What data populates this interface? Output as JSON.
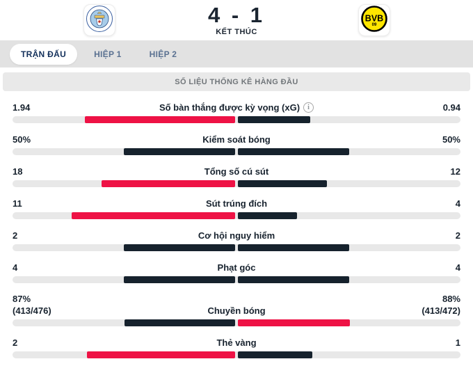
{
  "header": {
    "score": "4 - 1",
    "status": "KẾT THÚC",
    "home_badge_icon": "manchester-city-crest",
    "away_badge_icon": "borussia-dortmund-crest",
    "away_badge_text": "BVB",
    "away_badge_subtext": "09"
  },
  "tabs": [
    {
      "label": "TRẬN ĐẤU",
      "active": true
    },
    {
      "label": "HIỆP 1",
      "active": false
    },
    {
      "label": "HIỆP 2",
      "active": false
    }
  ],
  "section_title": "SỐ LIỆU THỐNG KÊ HÀNG ĐẦU",
  "colors": {
    "leader_bar": "#ee1245",
    "neutral_bar": "#16222d",
    "bar_track": "#e8e8e8",
    "text_dark": "#17222e",
    "tab_active_text": "#13305b",
    "tab_inactive_text": "#5a7191",
    "section_text": "#71767a",
    "bvb_yellow": "#ffe600",
    "mc_sky_blue": "#a7cce9"
  },
  "stats": [
    {
      "label": "Số bàn thắng được kỳ vọng (xG)",
      "info_icon": true,
      "home_display": "1.94",
      "away_display": "0.94",
      "home_value": 1.94,
      "away_value": 0.94,
      "leader": "home"
    },
    {
      "label": "Kiểm soát bóng",
      "info_icon": false,
      "home_display": "50%",
      "away_display": "50%",
      "home_value": 50,
      "away_value": 50,
      "leader": "none"
    },
    {
      "label": "Tổng số cú sút",
      "info_icon": false,
      "home_display": "18",
      "away_display": "12",
      "home_value": 18,
      "away_value": 12,
      "leader": "home"
    },
    {
      "label": "Sút trúng đích",
      "info_icon": false,
      "home_display": "11",
      "away_display": "4",
      "home_value": 11,
      "away_value": 4,
      "leader": "home"
    },
    {
      "label": "Cơ hội nguy hiểm",
      "info_icon": false,
      "home_display": "2",
      "away_display": "2",
      "home_value": 2,
      "away_value": 2,
      "leader": "none"
    },
    {
      "label": "Phạt góc",
      "info_icon": false,
      "home_display": "4",
      "away_display": "4",
      "home_value": 4,
      "away_value": 4,
      "leader": "none"
    },
    {
      "label": "Chuyền bóng",
      "info_icon": false,
      "home_display": "87%",
      "home_sub": "(413/476)",
      "away_display": "88%",
      "away_sub": "(413/472)",
      "home_value": 87,
      "away_value": 88,
      "leader": "away",
      "two_line": true
    },
    {
      "label": "Thẻ vàng",
      "info_icon": false,
      "home_display": "2",
      "away_display": "1",
      "home_value": 2,
      "away_value": 1,
      "leader": "home"
    }
  ]
}
